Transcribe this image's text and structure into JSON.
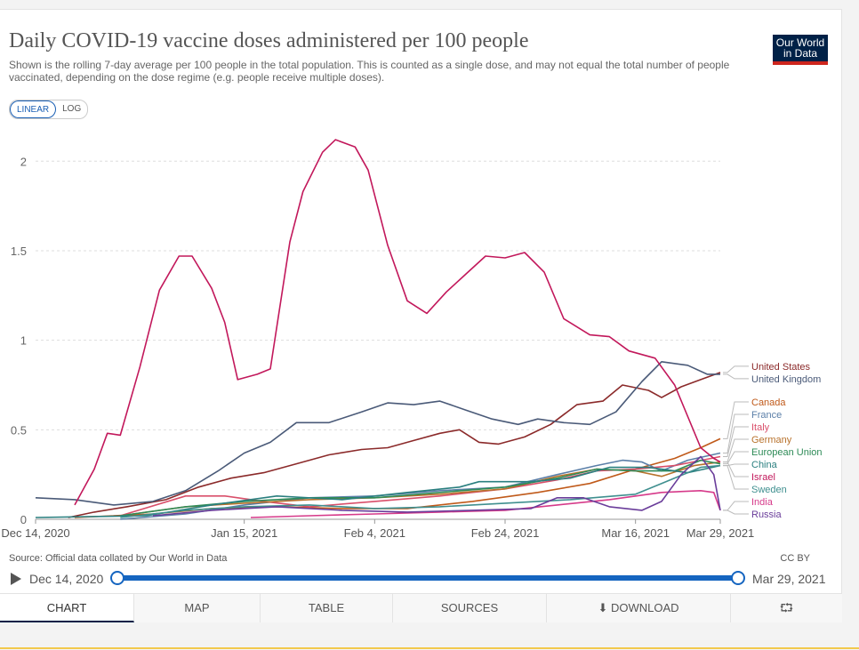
{
  "header": {
    "title": "Daily COVID-19 vaccine doses administered per 100 people",
    "subtitle": "Shown is the rolling 7-day average per 100 people in the total population. This is counted as a single dose, and may not equal the total number of people vaccinated, depending on the dose regime (e.g. people receive multiple doses).",
    "logo_line1": "Our World",
    "logo_line2": "in Data"
  },
  "scale_toggle": {
    "linear": "LINEAR",
    "log": "LOG",
    "selected": "LINEAR"
  },
  "footer": {
    "source": "Source: Official data collated by Our World in Data",
    "license": "CC BY"
  },
  "timeline": {
    "start": "Dec 14, 2020",
    "end": "Mar 29, 2021"
  },
  "tabs": {
    "chart": "CHART",
    "map": "MAP",
    "table": "TABLE",
    "sources": "SOURCES",
    "download": "DOWNLOAD",
    "download_icon": "download-icon",
    "share_icon": "share-icon"
  },
  "chart_data": {
    "type": "line",
    "title": "Daily COVID-19 vaccine doses administered per 100 people",
    "xlabel": "",
    "ylabel": "",
    "x_start": "2020-12-14",
    "x_end": "2021-03-29",
    "x_ticks": [
      {
        "date": "2020-12-14",
        "label": "Dec 14, 2020"
      },
      {
        "date": "2021-01-15",
        "label": "Jan 15, 2021"
      },
      {
        "date": "2021-02-04",
        "label": "Feb 4, 2021"
      },
      {
        "date": "2021-02-24",
        "label": "Feb 24, 2021"
      },
      {
        "date": "2021-03-16",
        "label": "Mar 16, 2021"
      },
      {
        "date": "2021-03-29",
        "label": "Mar 29, 2021"
      }
    ],
    "y_ticks": [
      0,
      0.5,
      1,
      1.5,
      2
    ],
    "ylim": [
      0,
      2.2
    ],
    "grid": "horizontal dashed",
    "legend": "right",
    "series": [
      {
        "name": "United States",
        "color": "#8b2a2a",
        "points": [
          [
            "2020-12-19",
            0.01
          ],
          [
            "2020-12-23",
            0.04
          ],
          [
            "2020-12-28",
            0.07
          ],
          [
            "2021-01-03",
            0.11
          ],
          [
            "2021-01-08",
            0.18
          ],
          [
            "2021-01-13",
            0.23
          ],
          [
            "2021-01-18",
            0.26
          ],
          [
            "2021-01-23",
            0.31
          ],
          [
            "2021-01-28",
            0.36
          ],
          [
            "2021-02-02",
            0.39
          ],
          [
            "2021-02-06",
            0.4
          ],
          [
            "2021-02-10",
            0.44
          ],
          [
            "2021-02-14",
            0.48
          ],
          [
            "2021-02-17",
            0.5
          ],
          [
            "2021-02-20",
            0.43
          ],
          [
            "2021-02-23",
            0.42
          ],
          [
            "2021-02-27",
            0.46
          ],
          [
            "2021-03-03",
            0.53
          ],
          [
            "2021-03-07",
            0.64
          ],
          [
            "2021-03-11",
            0.66
          ],
          [
            "2021-03-14",
            0.75
          ],
          [
            "2021-03-18",
            0.72
          ],
          [
            "2021-03-20",
            0.68
          ],
          [
            "2021-03-23",
            0.74
          ],
          [
            "2021-03-26",
            0.78
          ],
          [
            "2021-03-29",
            0.82
          ]
        ]
      },
      {
        "name": "United Kingdom",
        "color": "#4a5a78",
        "points": [
          [
            "2020-12-14",
            0.12
          ],
          [
            "2020-12-20",
            0.11
          ],
          [
            "2020-12-26",
            0.08
          ],
          [
            "2021-01-01",
            0.1
          ],
          [
            "2021-01-06",
            0.16
          ],
          [
            "2021-01-11",
            0.27
          ],
          [
            "2021-01-15",
            0.37
          ],
          [
            "2021-01-19",
            0.43
          ],
          [
            "2021-01-23",
            0.54
          ],
          [
            "2021-01-28",
            0.54
          ],
          [
            "2021-02-02",
            0.6
          ],
          [
            "2021-02-06",
            0.65
          ],
          [
            "2021-02-10",
            0.64
          ],
          [
            "2021-02-14",
            0.66
          ],
          [
            "2021-02-18",
            0.61
          ],
          [
            "2021-02-22",
            0.56
          ],
          [
            "2021-02-26",
            0.53
          ],
          [
            "2021-03-01",
            0.56
          ],
          [
            "2021-03-05",
            0.54
          ],
          [
            "2021-03-09",
            0.53
          ],
          [
            "2021-03-13",
            0.6
          ],
          [
            "2021-03-17",
            0.77
          ],
          [
            "2021-03-20",
            0.88
          ],
          [
            "2021-03-24",
            0.86
          ],
          [
            "2021-03-27",
            0.81
          ],
          [
            "2021-03-29",
            0.81
          ]
        ]
      },
      {
        "name": "Canada",
        "color": "#c05a1a",
        "points": [
          [
            "2020-12-20",
            0.01
          ],
          [
            "2021-01-01",
            0.03
          ],
          [
            "2021-01-10",
            0.06
          ],
          [
            "2021-01-20",
            0.07
          ],
          [
            "2021-01-30",
            0.06
          ],
          [
            "2021-02-09",
            0.06
          ],
          [
            "2021-02-19",
            0.1
          ],
          [
            "2021-03-01",
            0.15
          ],
          [
            "2021-03-09",
            0.2
          ],
          [
            "2021-03-16",
            0.28
          ],
          [
            "2021-03-22",
            0.34
          ],
          [
            "2021-03-26",
            0.4
          ],
          [
            "2021-03-29",
            0.45
          ]
        ]
      },
      {
        "name": "France",
        "color": "#5b7fa8",
        "points": [
          [
            "2020-12-27",
            0.0
          ],
          [
            "2021-01-06",
            0.03
          ],
          [
            "2021-01-15",
            0.08
          ],
          [
            "2021-01-25",
            0.12
          ],
          [
            "2021-02-04",
            0.13
          ],
          [
            "2021-02-14",
            0.16
          ],
          [
            "2021-02-24",
            0.18
          ],
          [
            "2021-03-04",
            0.25
          ],
          [
            "2021-03-10",
            0.3
          ],
          [
            "2021-03-14",
            0.33
          ],
          [
            "2021-03-17",
            0.32
          ],
          [
            "2021-03-20",
            0.27
          ],
          [
            "2021-03-24",
            0.33
          ],
          [
            "2021-03-29",
            0.37
          ]
        ]
      },
      {
        "name": "Italy",
        "color": "#d94f6a",
        "points": [
          [
            "2020-12-27",
            0.02
          ],
          [
            "2021-01-06",
            0.13
          ],
          [
            "2021-01-12",
            0.13
          ],
          [
            "2021-01-18",
            0.1
          ],
          [
            "2021-01-25",
            0.07
          ],
          [
            "2021-02-04",
            0.1
          ],
          [
            "2021-02-14",
            0.13
          ],
          [
            "2021-02-24",
            0.17
          ],
          [
            "2021-03-04",
            0.22
          ],
          [
            "2021-03-10",
            0.27
          ],
          [
            "2021-03-16",
            0.28
          ],
          [
            "2021-03-22",
            0.3
          ],
          [
            "2021-03-29",
            0.35
          ]
        ]
      },
      {
        "name": "Germany",
        "color": "#b8722c",
        "points": [
          [
            "2020-12-27",
            0.02
          ],
          [
            "2021-01-06",
            0.07
          ],
          [
            "2021-01-15",
            0.09
          ],
          [
            "2021-01-25",
            0.11
          ],
          [
            "2021-02-04",
            0.12
          ],
          [
            "2021-02-14",
            0.14
          ],
          [
            "2021-02-24",
            0.17
          ],
          [
            "2021-03-04",
            0.24
          ],
          [
            "2021-03-10",
            0.28
          ],
          [
            "2021-03-16",
            0.27
          ],
          [
            "2021-03-20",
            0.24
          ],
          [
            "2021-03-25",
            0.3
          ],
          [
            "2021-03-29",
            0.32
          ]
        ]
      },
      {
        "name": "European Union",
        "color": "#2e8b57",
        "points": [
          [
            "2020-12-27",
            0.02
          ],
          [
            "2021-01-06",
            0.07
          ],
          [
            "2021-01-15",
            0.1
          ],
          [
            "2021-01-25",
            0.12
          ],
          [
            "2021-02-04",
            0.12
          ],
          [
            "2021-02-14",
            0.15
          ],
          [
            "2021-02-24",
            0.18
          ],
          [
            "2021-03-04",
            0.23
          ],
          [
            "2021-03-10",
            0.28
          ],
          [
            "2021-03-16",
            0.27
          ],
          [
            "2021-03-22",
            0.27
          ],
          [
            "2021-03-26",
            0.33
          ],
          [
            "2021-03-29",
            0.31
          ]
        ]
      },
      {
        "name": "China",
        "color": "#2a7f7f",
        "points": [
          [
            "2020-12-14",
            0.01
          ],
          [
            "2020-12-31",
            0.02
          ],
          [
            "2021-01-10",
            0.08
          ],
          [
            "2021-01-20",
            0.13
          ],
          [
            "2021-01-30",
            0.11
          ],
          [
            "2021-02-09",
            0.15
          ],
          [
            "2021-02-17",
            0.18
          ],
          [
            "2021-02-20",
            0.21
          ],
          [
            "2021-02-28",
            0.21
          ],
          [
            "2021-03-06",
            0.23
          ],
          [
            "2021-03-12",
            0.29
          ],
          [
            "2021-03-18",
            0.29
          ],
          [
            "2021-03-24",
            0.26
          ],
          [
            "2021-03-29",
            0.3
          ]
        ]
      },
      {
        "name": "Israel",
        "color": "#c2185b",
        "points": [
          [
            "2020-12-20",
            0.08
          ],
          [
            "2020-12-23",
            0.28
          ],
          [
            "2020-12-25",
            0.48
          ],
          [
            "2020-12-27",
            0.47
          ],
          [
            "2020-12-30",
            0.85
          ],
          [
            "2021-01-02",
            1.28
          ],
          [
            "2021-01-05",
            1.47
          ],
          [
            "2021-01-07",
            1.47
          ],
          [
            "2021-01-10",
            1.29
          ],
          [
            "2021-01-12",
            1.1
          ],
          [
            "2021-01-14",
            0.78
          ],
          [
            "2021-01-17",
            0.81
          ],
          [
            "2021-01-19",
            0.84
          ],
          [
            "2021-01-22",
            1.55
          ],
          [
            "2021-01-24",
            1.83
          ],
          [
            "2021-01-27",
            2.05
          ],
          [
            "2021-01-29",
            2.12
          ],
          [
            "2021-02-01",
            2.08
          ],
          [
            "2021-02-03",
            1.95
          ],
          [
            "2021-02-06",
            1.53
          ],
          [
            "2021-02-09",
            1.22
          ],
          [
            "2021-02-12",
            1.15
          ],
          [
            "2021-02-15",
            1.27
          ],
          [
            "2021-02-18",
            1.37
          ],
          [
            "2021-02-21",
            1.47
          ],
          [
            "2021-02-24",
            1.46
          ],
          [
            "2021-02-27",
            1.49
          ],
          [
            "2021-03-02",
            1.38
          ],
          [
            "2021-03-05",
            1.12
          ],
          [
            "2021-03-09",
            1.03
          ],
          [
            "2021-03-12",
            1.02
          ],
          [
            "2021-03-15",
            0.94
          ],
          [
            "2021-03-19",
            0.9
          ],
          [
            "2021-03-22",
            0.75
          ],
          [
            "2021-03-26",
            0.4
          ],
          [
            "2021-03-28",
            0.34
          ],
          [
            "2021-03-29",
            0.32
          ]
        ]
      },
      {
        "name": "Sweden",
        "color": "#3f8f8f",
        "points": [
          [
            "2020-12-27",
            0.01
          ],
          [
            "2021-01-06",
            0.05
          ],
          [
            "2021-01-15",
            0.07
          ],
          [
            "2021-01-25",
            0.08
          ],
          [
            "2021-02-04",
            0.06
          ],
          [
            "2021-02-14",
            0.07
          ],
          [
            "2021-02-24",
            0.09
          ],
          [
            "2021-03-06",
            0.11
          ],
          [
            "2021-03-16",
            0.14
          ],
          [
            "2021-03-20",
            0.2
          ],
          [
            "2021-03-26",
            0.29
          ],
          [
            "2021-03-29",
            0.3
          ]
        ]
      },
      {
        "name": "India",
        "color": "#d63a8a",
        "points": [
          [
            "2021-01-16",
            0.01
          ],
          [
            "2021-01-25",
            0.02
          ],
          [
            "2021-02-04",
            0.03
          ],
          [
            "2021-02-14",
            0.04
          ],
          [
            "2021-02-24",
            0.05
          ],
          [
            "2021-03-04",
            0.08
          ],
          [
            "2021-03-12",
            0.11
          ],
          [
            "2021-03-20",
            0.15
          ],
          [
            "2021-03-26",
            0.16
          ],
          [
            "2021-03-28",
            0.15
          ],
          [
            "2021-03-29",
            0.05
          ]
        ]
      },
      {
        "name": "Russia",
        "color": "#6a3d9a",
        "points": [
          [
            "2021-01-01",
            0.02
          ],
          [
            "2021-01-10",
            0.05
          ],
          [
            "2021-01-20",
            0.07
          ],
          [
            "2021-01-30",
            0.05
          ],
          [
            "2021-02-09",
            0.04
          ],
          [
            "2021-02-19",
            0.05
          ],
          [
            "2021-02-28",
            0.06
          ],
          [
            "2021-03-04",
            0.12
          ],
          [
            "2021-03-08",
            0.12
          ],
          [
            "2021-03-12",
            0.07
          ],
          [
            "2021-03-17",
            0.05
          ],
          [
            "2021-03-20",
            0.1
          ],
          [
            "2021-03-23",
            0.25
          ],
          [
            "2021-03-26",
            0.35
          ],
          [
            "2021-03-28",
            0.25
          ],
          [
            "2021-03-29",
            0.05
          ]
        ]
      }
    ]
  }
}
